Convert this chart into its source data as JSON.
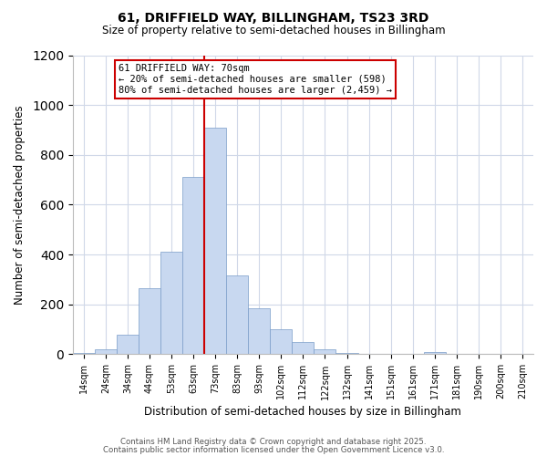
{
  "title": "61, DRIFFIELD WAY, BILLINGHAM, TS23 3RD",
  "subtitle": "Size of property relative to semi-detached houses in Billingham",
  "xlabel": "Distribution of semi-detached houses by size in Billingham",
  "ylabel": "Number of semi-detached properties",
  "bin_labels": [
    "14sqm",
    "24sqm",
    "34sqm",
    "44sqm",
    "53sqm",
    "63sqm",
    "73sqm",
    "83sqm",
    "93sqm",
    "102sqm",
    "112sqm",
    "122sqm",
    "132sqm",
    "141sqm",
    "151sqm",
    "161sqm",
    "171sqm",
    "181sqm",
    "190sqm",
    "200sqm",
    "210sqm"
  ],
  "bar_values": [
    5,
    20,
    80,
    265,
    410,
    710,
    910,
    315,
    185,
    100,
    50,
    20,
    5,
    3,
    2,
    1,
    10,
    2,
    2,
    2,
    0
  ],
  "bar_color": "#c8d8f0",
  "bar_edge_color": "#7a9cc8",
  "annotation_title": "61 DRIFFIELD WAY: 70sqm",
  "annotation_line1": "← 20% of semi-detached houses are smaller (598)",
  "annotation_line2": "80% of semi-detached houses are larger (2,459) →",
  "annotation_box_color": "#ffffff",
  "annotation_box_edge_color": "#cc0000",
  "vertical_line_x": 6,
  "vertical_line_color": "#cc0000",
  "ylim": [
    0,
    1200
  ],
  "yticks": [
    0,
    200,
    400,
    600,
    800,
    1000,
    1200
  ],
  "footer_line1": "Contains HM Land Registry data © Crown copyright and database right 2025.",
  "footer_line2": "Contains public sector information licensed under the Open Government Licence v3.0.",
  "background_color": "#ffffff",
  "grid_color": "#d0d8e8"
}
